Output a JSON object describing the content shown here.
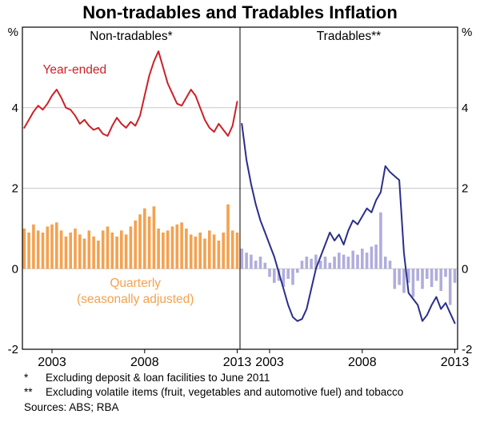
{
  "title": "Non-tradables and Tradables Inflation",
  "footnotes": [
    {
      "marker": "*",
      "text": "Excluding deposit & loan facilities to June 2011"
    },
    {
      "marker": "**",
      "text": "Excluding volatile items (fruit, vegetables and automotive fuel) and tobacco"
    }
  ],
  "sources": "Sources: ABS; RBA",
  "chart_data": {
    "type": "line",
    "layout": "two-panel",
    "y_unit": "%",
    "ylim": [
      -2,
      6
    ],
    "yticks": [
      -2,
      0,
      2,
      4
    ],
    "xlim": [
      2001.4,
      2013.15
    ],
    "x_start": 2001.5,
    "x_step": 0.25,
    "xticks": [
      2003,
      2008,
      2013
    ],
    "grid": true,
    "grid_color": "#c9c9c9",
    "colors": {
      "nontradables_line": "#cc2128",
      "nontradables_bar": "#f5a14f",
      "tradables_line": "#2b2e8c",
      "tradables_bar": "#b0addc"
    },
    "panels": [
      {
        "title": "Non-tradables*",
        "series": [
          {
            "name": "Year-ended",
            "type": "line",
            "color": "#cc2128",
            "values": [
              3.5,
              3.7,
              3.9,
              4.05,
              3.95,
              4.1,
              4.3,
              4.45,
              4.25,
              4.0,
              3.95,
              3.8,
              3.6,
              3.7,
              3.55,
              3.45,
              3.5,
              3.35,
              3.3,
              3.55,
              3.75,
              3.6,
              3.5,
              3.65,
              3.55,
              3.8,
              4.3,
              4.8,
              5.15,
              5.4,
              5.0,
              4.6,
              4.35,
              4.1,
              4.05,
              4.25,
              4.45,
              4.3,
              4.0,
              3.7,
              3.5,
              3.4,
              3.6,
              3.45,
              3.3,
              3.55,
              4.15
            ]
          },
          {
            "name": "Quarterly (seasonally adjusted)",
            "type": "bar",
            "color": "#f5a14f",
            "values": [
              1.0,
              0.9,
              1.1,
              0.95,
              0.9,
              1.05,
              1.1,
              1.15,
              0.95,
              0.8,
              0.9,
              1.0,
              0.85,
              0.75,
              0.95,
              0.8,
              0.7,
              0.95,
              1.05,
              0.9,
              0.8,
              0.95,
              0.85,
              1.05,
              1.2,
              1.35,
              1.5,
              1.3,
              1.55,
              1.0,
              0.9,
              0.95,
              1.05,
              1.1,
              1.15,
              1.0,
              0.85,
              0.8,
              0.9,
              0.75,
              0.95,
              0.85,
              0.7,
              0.9,
              1.6,
              0.95,
              0.9
            ]
          }
        ],
        "annotations": [
          {
            "text": "Year-ended",
            "color": "#cc2128",
            "x": 2002.5,
            "y": 4.85,
            "anchor": "start"
          },
          {
            "text": "Quarterly",
            "color": "#f5a14f",
            "x": 2007.5,
            "y": -0.45,
            "anchor": "middle"
          },
          {
            "text": "(seasonally adjusted)",
            "color": "#f5a14f",
            "x": 2007.5,
            "y": -0.85,
            "anchor": "middle"
          }
        ]
      },
      {
        "title": "Tradables**",
        "series": [
          {
            "name": "Year-ended",
            "type": "line",
            "color": "#2b2e8c",
            "values": [
              3.6,
              2.7,
              2.1,
              1.6,
              1.2,
              0.9,
              0.6,
              0.3,
              -0.1,
              -0.5,
              -0.9,
              -1.2,
              -1.3,
              -1.25,
              -1.0,
              -0.5,
              0.0,
              0.3,
              0.6,
              0.9,
              0.7,
              0.85,
              0.6,
              0.95,
              1.2,
              1.1,
              1.3,
              1.5,
              1.4,
              1.7,
              1.9,
              2.55,
              2.4,
              2.3,
              2.2,
              0.4,
              -0.6,
              -0.75,
              -0.9,
              -1.3,
              -1.15,
              -0.9,
              -0.7,
              -1.0,
              -0.85,
              -1.1,
              -1.35
            ]
          },
          {
            "name": "Quarterly",
            "type": "bar",
            "color": "#b0addc",
            "values": [
              0.5,
              0.4,
              0.35,
              0.2,
              0.3,
              0.15,
              -0.2,
              -0.35,
              -0.3,
              -0.45,
              -0.25,
              -0.4,
              -0.1,
              0.2,
              0.3,
              0.25,
              0.35,
              0.2,
              0.3,
              0.15,
              0.3,
              0.4,
              0.35,
              0.3,
              0.45,
              0.35,
              0.5,
              0.4,
              0.55,
              0.6,
              1.4,
              0.3,
              0.2,
              -0.5,
              -0.4,
              -0.6,
              -0.35,
              -0.7,
              -0.3,
              -0.5,
              -0.25,
              -0.45,
              -0.3,
              -0.55,
              -0.2,
              -0.9,
              -0.35
            ]
          }
        ],
        "annotations": []
      }
    ]
  }
}
